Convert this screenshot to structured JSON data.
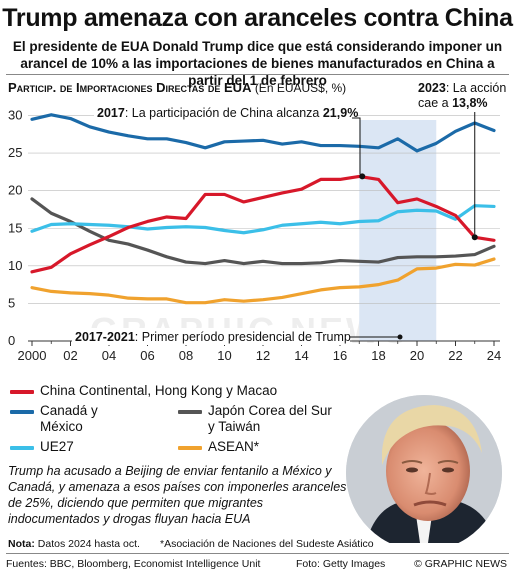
{
  "title": "Trump amenaza con aranceles contra China",
  "subtitle": "El presidente de EUA Donald Trump dice que está considerando imponer un arancel de 10% a las importaciones de bienes manufacturados en China a partir del 1 de febrero",
  "chart_header": {
    "main": "Particip. de Importaciones Directas de EUA",
    "unit": "(En EUAUS$, %)"
  },
  "chart_data": {
    "type": "line",
    "x": [
      2000,
      2001,
      2002,
      2003,
      2004,
      2005,
      2006,
      2007,
      2008,
      2009,
      2010,
      2011,
      2012,
      2013,
      2014,
      2015,
      2016,
      2017,
      2018,
      2019,
      2020,
      2021,
      2022,
      2023,
      2024
    ],
    "xticks": [
      "2000",
      "02",
      "04",
      "06",
      "08",
      "10",
      "12",
      "14",
      "16",
      "18",
      "20",
      "22",
      "24"
    ],
    "yticks": [
      "0",
      "5",
      "10",
      "15",
      "20",
      "25",
      "30"
    ],
    "ylim": [
      0,
      31
    ],
    "shaded_period": [
      2017,
      2021
    ],
    "series": [
      {
        "name": "China Continental, Hong Kong y Macao",
        "color": "#d7182a",
        "values": [
          9.2,
          9.8,
          11.6,
          12.8,
          13.9,
          15.1,
          15.9,
          16.5,
          16.3,
          19.5,
          19.5,
          18.5,
          19.1,
          19.7,
          20.2,
          21.5,
          21.5,
          21.9,
          21.5,
          18.4,
          18.9,
          17.9,
          16.7,
          13.8,
          13.4
        ]
      },
      {
        "name": "Canadá y México",
        "color": "#1b6aa8",
        "values": [
          29.5,
          30.1,
          29.6,
          28.5,
          27.8,
          27.3,
          26.9,
          26.9,
          26.4,
          25.7,
          26.5,
          26.6,
          26.7,
          26.2,
          26.5,
          26.0,
          26.0,
          25.9,
          25.7,
          26.9,
          25.3,
          26.3,
          27.9,
          29.0,
          28.0
        ]
      },
      {
        "name": "Japón Corea del Sur y Taiwán",
        "color": "#555555",
        "values": [
          18.9,
          17.0,
          15.9,
          14.6,
          13.4,
          12.9,
          12.1,
          11.2,
          10.5,
          10.3,
          10.7,
          10.3,
          10.6,
          10.3,
          10.3,
          10.4,
          10.7,
          10.6,
          10.5,
          11.1,
          11.2,
          11.2,
          11.3,
          11.5,
          12.6
        ]
      },
      {
        "name": "UE27",
        "color": "#3bbfe8",
        "values": [
          14.6,
          15.5,
          15.6,
          15.5,
          15.4,
          15.2,
          14.9,
          15.1,
          15.2,
          15.1,
          14.7,
          14.4,
          14.8,
          15.4,
          15.6,
          15.8,
          15.6,
          15.9,
          16.0,
          17.2,
          17.4,
          17.3,
          16.2,
          18.0,
          17.9
        ]
      },
      {
        "name": "ASEAN*",
        "color": "#f0a22e",
        "values": [
          7.1,
          6.6,
          6.4,
          6.3,
          6.1,
          5.7,
          5.6,
          5.6,
          5.1,
          5.1,
          5.5,
          5.3,
          5.5,
          5.8,
          6.3,
          6.8,
          7.1,
          7.2,
          7.5,
          8.1,
          9.6,
          9.7,
          10.2,
          10.1,
          10.9
        ]
      }
    ],
    "annotations": {
      "a2017": {
        "year": "2017",
        "text": ": La participación de China alcanza ",
        "value": "21,9%"
      },
      "a2023": {
        "year": "2023",
        "text1": ": La acción",
        "text2": "cae a ",
        "value": "13,8%"
      },
      "term": {
        "years": "2017-2021",
        "text": ": Primer período presidencial de Trump"
      }
    }
  },
  "legend": {
    "china": "China Continental, Hong Kong y Macao",
    "canada_1": "Canadá y",
    "canada_2": "México",
    "japan_1": "Japón Corea del Sur",
    "japan_2": "y Taiwán",
    "eu": "UE27",
    "asean": "ASEAN*"
  },
  "note_text": "Trump ha acusado a Beijing de enviar fentanilo a México y Canadá, y amenaza a esos países con imponerles aranceles de 25%, diciendo que permiten que migrantes indocumentados y drogas fluyan hacia EUA",
  "footer": {
    "note_label": "Nota:",
    "note_value": "Datos 2024 hasta oct.",
    "asean_note": "*Asociación de Naciones del Sudeste Asiático",
    "sources": "Fuentes: BBC, Bloomberg, Economist Intelligence Unit",
    "photo": "Foto: Getty Images",
    "credit": "© GRAPHIC NEWS"
  },
  "colors": {
    "china": "#d7182a",
    "canada": "#1b6aa8",
    "japan": "#555555",
    "eu": "#3bbfe8",
    "asean": "#f0a22e",
    "shade": "#dbe6f4"
  }
}
